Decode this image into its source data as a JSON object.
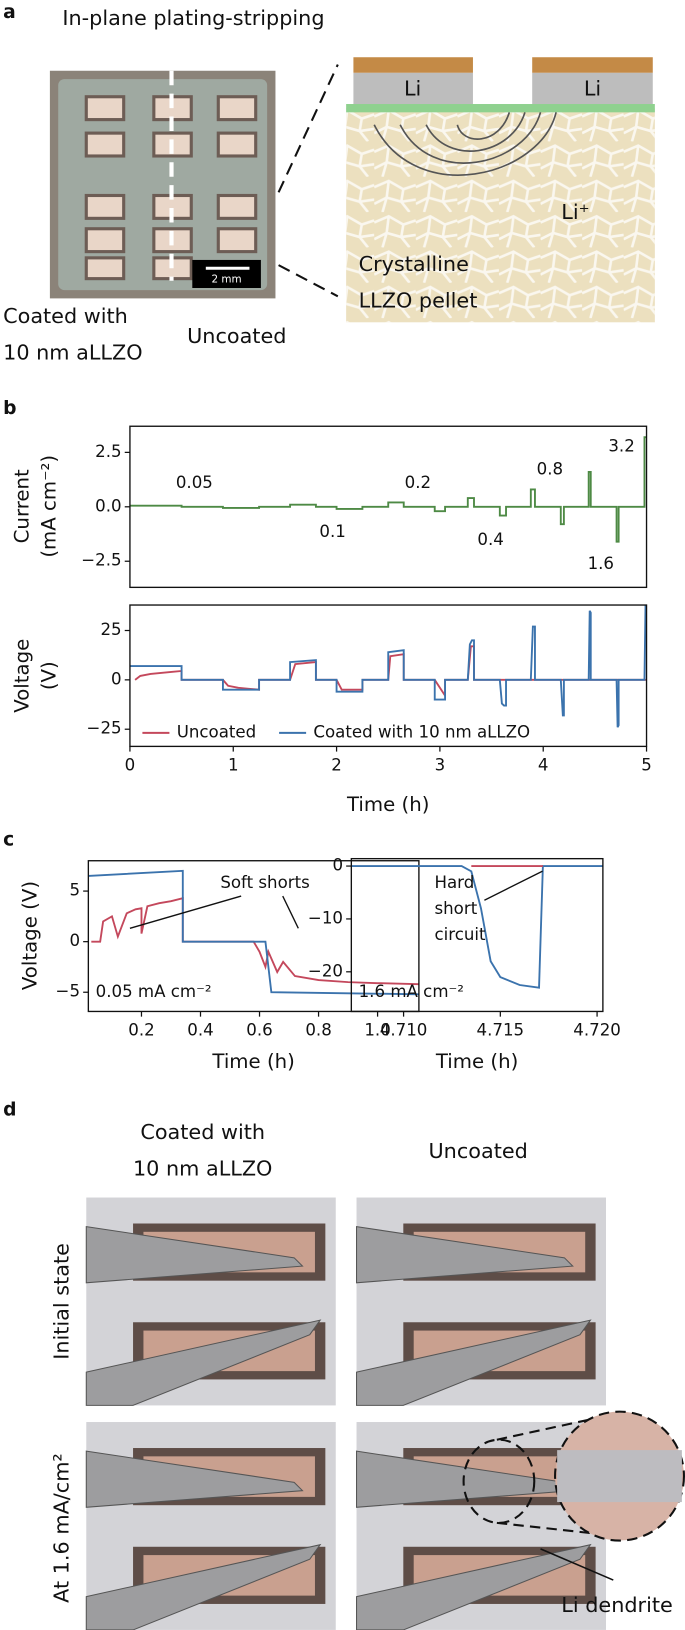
{
  "panel_labels": [
    "a",
    "b",
    "c",
    "d"
  ],
  "panel_a": {
    "title": "In-plane  plating-stripping",
    "coated_label": [
      "Coated with",
      "10 nm aLLZO"
    ],
    "uncoated_label": "Uncoated",
    "scale_bar": "2 mm",
    "electrodes": [
      "Li",
      "Li"
    ],
    "ion": "Li⁺",
    "pellet_label": [
      "Crystalline",
      "LLZO pellet"
    ]
  },
  "chart_data": [
    {
      "type": "line",
      "ylabel": [
        "Current",
        "(mA cm⁻²)"
      ],
      "color": "#4e8a45",
      "x": [
        0,
        0.5,
        0.5,
        0.9,
        0.9,
        1.25,
        1.25,
        1.55,
        1.55,
        1.8,
        1.8,
        2.0,
        2.0,
        2.25,
        2.25,
        2.5,
        2.5,
        2.65,
        2.65,
        2.95,
        2.95,
        3.05,
        3.05,
        3.27,
        3.27,
        3.33,
        3.33,
        3.58,
        3.58,
        3.64,
        3.64,
        3.88,
        3.88,
        3.92,
        3.92,
        4.17,
        4.17,
        4.2,
        4.2,
        4.44,
        4.44,
        4.46,
        4.46,
        4.71,
        4.71,
        4.73,
        4.73,
        4.98,
        4.98,
        5.0
      ],
      "values": [
        0.05,
        0.05,
        0,
        0,
        -0.05,
        -0.05,
        0,
        0,
        0.1,
        0.1,
        0,
        0,
        -0.1,
        -0.1,
        0,
        0,
        0.2,
        0.2,
        0,
        0,
        -0.2,
        -0.2,
        0,
        0,
        0.4,
        0.4,
        0,
        0,
        -0.4,
        -0.4,
        0,
        0,
        0.8,
        0.8,
        0,
        0,
        -0.8,
        -0.8,
        0,
        0,
        1.6,
        1.6,
        0,
        0,
        -1.6,
        -1.6,
        0,
        0,
        3.2,
        3.2
      ],
      "xlim": [
        0,
        5
      ],
      "ylim": [
        -3.7,
        3.7
      ],
      "yticks": [
        {
          "value": 2.5,
          "label": "2.5"
        },
        {
          "value": 0,
          "label": "0.0"
        },
        {
          "value": -2.5,
          "label": "−2.5"
        }
      ],
      "annotations": [
        "0.05",
        "0.1",
        "0.2",
        "0.4",
        "0.8",
        "1.6",
        "3.2"
      ]
    },
    {
      "type": "line",
      "ylabel": [
        "Voltage",
        "(V)"
      ],
      "xlabel": "Time (h)",
      "legend": "lower left",
      "series": [
        {
          "name": "Uncoated",
          "color": "#c4485c",
          "x": [
            0.05,
            0.1,
            0.2,
            0.3,
            0.4,
            0.5,
            0.5,
            0.9,
            0.95,
            1.05,
            1.15,
            1.25,
            1.25,
            1.55,
            1.6,
            1.8,
            1.8,
            2.0,
            2.05,
            2.25,
            2.25,
            2.5,
            2.52,
            2.65,
            2.65,
            2.95,
            3.05,
            3.05,
            3.27,
            3.3,
            3.33,
            3.33,
            5.0
          ],
          "values": [
            0,
            2,
            3,
            3.5,
            4,
            4.5,
            0,
            0,
            -3,
            -4,
            -4.5,
            -5,
            0,
            0,
            8,
            9,
            0,
            0,
            -5,
            -5,
            0,
            0,
            12,
            13,
            0,
            0,
            -8,
            0,
            0,
            17,
            17,
            0,
            0
          ]
        },
        {
          "name": "Coated with 10 nm aLLZO",
          "color": "#3b73ad",
          "x": [
            0,
            0.5,
            0.5,
            0.9,
            0.9,
            1.25,
            1.25,
            1.55,
            1.55,
            1.8,
            1.8,
            2.0,
            2.0,
            2.25,
            2.25,
            2.5,
            2.5,
            2.65,
            2.65,
            2.95,
            2.95,
            3.05,
            3.05,
            3.27,
            3.29,
            3.31,
            3.33,
            3.33,
            3.58,
            3.6,
            3.62,
            3.64,
            3.64,
            3.88,
            3.9,
            3.92,
            3.92,
            4.17,
            4.19,
            4.2,
            4.2,
            4.44,
            4.45,
            4.46,
            4.46,
            4.71,
            4.72,
            4.73,
            4.73,
            4.98,
            4.99,
            5.0
          ],
          "values": [
            7,
            7,
            0,
            0,
            -5,
            -5,
            0,
            0,
            9,
            10,
            0,
            0,
            -6,
            -6,
            0,
            0,
            14,
            15,
            0,
            0,
            -10,
            -10,
            0,
            0,
            18,
            20,
            20,
            0,
            0,
            -12,
            -13,
            -13,
            0,
            0,
            27,
            27,
            0,
            0,
            -18,
            -18,
            0,
            0,
            35,
            34,
            0,
            0,
            -24,
            -23,
            0,
            0,
            38,
            38
          ]
        }
      ],
      "xlim": [
        0,
        5
      ],
      "ylim": [
        -33.7,
        37.9
      ],
      "xticks": [
        0,
        1,
        2,
        3,
        4,
        5
      ],
      "yticks": [
        25,
        0,
        {
          "value": -25,
          "label": "−25"
        }
      ]
    },
    {
      "type": "line",
      "ylabel": [
        "Voltage (V)"
      ],
      "xlabel": "Time (h)",
      "series": [
        {
          "color": "#c4485c",
          "x": [
            0.03,
            0.06,
            0.07,
            0.1,
            0.12,
            0.15,
            0.18,
            0.2,
            0.2,
            0.22,
            0.26,
            0.3,
            0.34,
            0.34,
            0.58,
            0.6,
            0.62,
            0.63,
            0.66,
            0.68,
            0.72,
            0.8,
            0.9,
            1.0,
            1.14
          ],
          "values": [
            0,
            0,
            2,
            2.5,
            0.5,
            2.8,
            3.2,
            3.3,
            0.8,
            3.5,
            3.8,
            4,
            4.3,
            0,
            0,
            -1,
            -2.5,
            -1,
            -3,
            -2,
            -3.4,
            -3.8,
            -4,
            -4.1,
            -4.2
          ]
        },
        {
          "color": "#3b73ad",
          "x": [
            0.02,
            0.34,
            0.34,
            0.62,
            0.64,
            1.14
          ],
          "values": [
            6.5,
            7,
            0,
            0,
            -5,
            -5.2
          ]
        }
      ],
      "xlim": [
        0.02,
        1.14
      ],
      "ylim": [
        -6.9,
        8
      ],
      "xticks": [
        0.2,
        0.4,
        0.6,
        0.8,
        {
          "value": 1.0,
          "label": "1.0"
        }
      ],
      "yticks": [
        5,
        0,
        {
          "value": -5,
          "label": "−5"
        }
      ],
      "annotations": [
        "Soft shorts",
        "0.05 mA cm⁻²"
      ]
    },
    {
      "type": "line",
      "xlabel": "Time (h)",
      "series": [
        {
          "color": "#3b73ad",
          "x": [
            4.7073,
            4.713,
            4.7135,
            4.714,
            4.7145,
            4.715,
            4.716,
            4.717,
            4.7172,
            4.7203
          ],
          "values": [
            0,
            0,
            -1,
            -8,
            -18,
            -21,
            -22.5,
            -23,
            0,
            0
          ]
        },
        {
          "color": "#c4485c",
          "x": [
            4.7135,
            4.7172
          ],
          "values": [
            0,
            0
          ]
        }
      ],
      "xlim": [
        4.7073,
        4.7203
      ],
      "ylim": [
        -27.5,
        1.4
      ],
      "xticks": [
        {
          "value": 4.71,
          "label": "4.710"
        },
        {
          "value": 4.715,
          "label": "4.715"
        },
        {
          "value": 4.72,
          "label": "4.720"
        }
      ],
      "yticks": [
        0,
        {
          "value": -10,
          "label": "−10"
        },
        {
          "value": -20,
          "label": "−20"
        }
      ],
      "annotations": [
        [
          "Hard",
          "short",
          "circuit"
        ],
        "1.6 mA cm⁻²"
      ]
    }
  ],
  "panel_d": {
    "column_headers": [
      [
        "Coated with",
        "10 nm aLLZO"
      ],
      [
        "Uncoated"
      ]
    ],
    "row_labels": [
      "Initial state",
      "At 1.6 mA/cm²"
    ],
    "callout": "Li dendrite"
  }
}
